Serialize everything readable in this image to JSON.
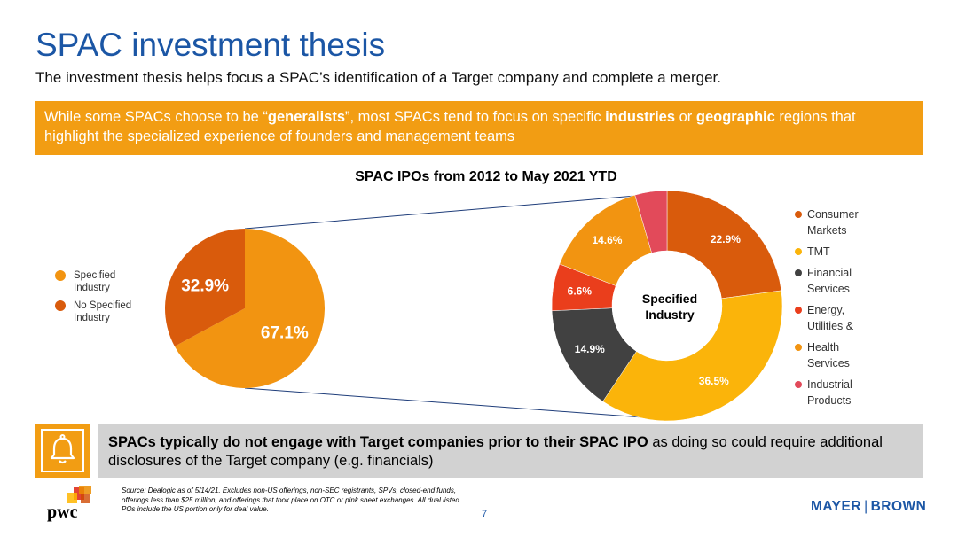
{
  "slide": {
    "title": "SPAC investment thesis",
    "subtitle": "The investment thesis helps focus a SPAC’s identification of a Target company and complete a merger."
  },
  "highlight": {
    "part1": "While some SPACs choose to be “",
    "bold1": "generalists",
    "part2": "”, most SPACs tend to focus on specific ",
    "bold2": "industries",
    "part3": " or ",
    "bold3": "geographic",
    "part4": " regions that highlight the specialized experience of founders and management teams"
  },
  "chart_title": "SPAC IPOs from 2012 to May 2021 YTD",
  "chart_data": [
    {
      "type": "pie",
      "categories": [
        "Specified Industry",
        "No Specified Industry"
      ],
      "values": [
        67.1,
        32.9
      ],
      "labels": [
        "67.1%",
        "32.9%"
      ],
      "colors": [
        "#f29411",
        "#d95b0c"
      ],
      "legend": "left"
    },
    {
      "type": "pie",
      "title": "SPAC IPOs from 2012 to May 2021 YTD",
      "center_label": "Specified Industry",
      "categories": [
        "Consumer Markets",
        "TMT",
        "Financial Services",
        "Energy, Utilities &",
        "Health Services",
        "Industrial Products"
      ],
      "values": [
        22.9,
        36.5,
        14.9,
        6.6,
        14.6,
        4.5
      ],
      "labels": [
        "22.9%",
        "36.5%",
        "14.9%",
        "6.6%",
        "14.6%",
        ""
      ],
      "colors": [
        "#d95b0c",
        "#fbb40a",
        "#414141",
        "#ea3e1c",
        "#f29411",
        "#e24a5a"
      ],
      "legend": "right"
    }
  ],
  "left_legend": [
    {
      "label": "Specified Industry",
      "color": "#f29411"
    },
    {
      "label": "No Specified Industry",
      "color": "#d95b0c"
    }
  ],
  "right_legend": [
    {
      "label": "Consumer Markets",
      "color": "#d95b0c"
    },
    {
      "label": "TMT",
      "color": "#fbb40a"
    },
    {
      "label": "Financial Services",
      "color": "#414141"
    },
    {
      "label": "Energy, Utilities &",
      "color": "#ea3e1c"
    },
    {
      "label": "Health Services",
      "color": "#f29411"
    },
    {
      "label": "Industrial Products",
      "color": "#e24a5a"
    }
  ],
  "note": {
    "bold": "SPACs typically do not engage with Target companies prior to their SPAC IPO",
    "rest": " as doing so could require additional disclosures of the Target company (e.g. financials)"
  },
  "icons": {
    "note_icon": "bell-icon",
    "logo": "pwc-logo"
  },
  "footer": {
    "source": "Source: Dealogic as of 5/14/21. Excludes non-US offerings, non-SEC registrants, SPVs, closed-end funds, offerings less than $25 million, and offerings that took place on OTC or pink sheet exchanges. All dual listed POs include the US portion only for deal value.",
    "page_number": "7",
    "logo_left": "pwc",
    "logo_right_a": "MAYER",
    "logo_right_b": "BROWN"
  },
  "colors": {
    "accent_blue": "#1b56a5",
    "accent_orange": "#f29d13",
    "note_grey": "#d2d2d2"
  }
}
